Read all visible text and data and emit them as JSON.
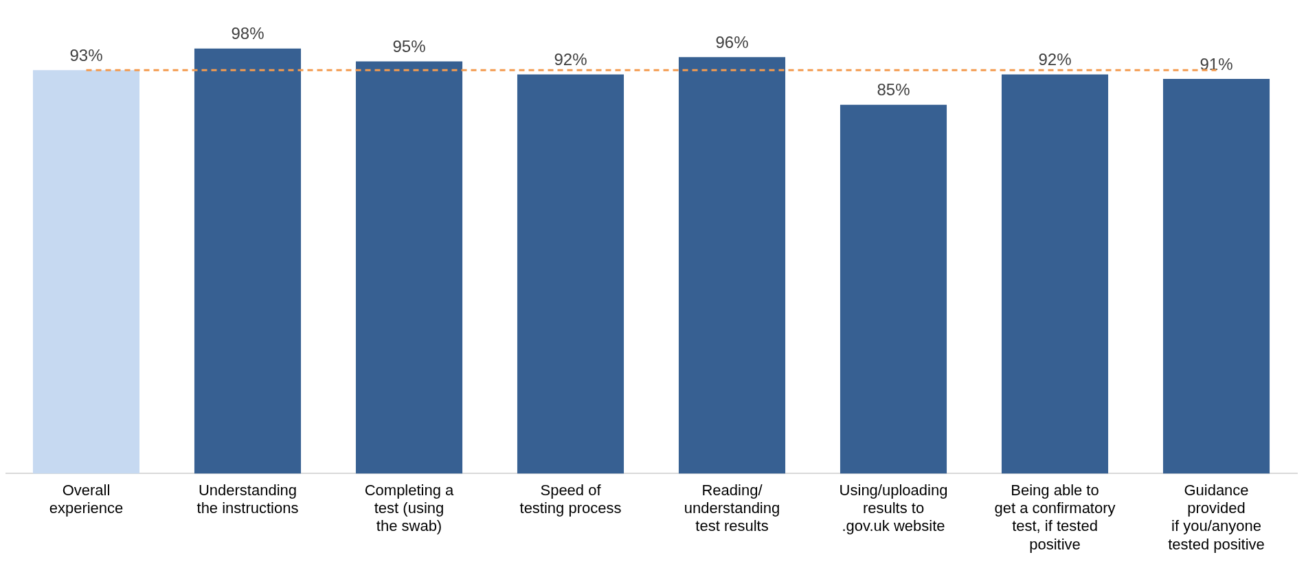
{
  "chart_data": {
    "type": "bar",
    "categories": [
      "Overall\nexperience",
      "Understanding\nthe instructions",
      "Completing a\ntest (using\nthe swab)",
      "Speed of\ntesting process",
      "Reading/\nunderstanding\ntest results",
      "Using/uploading\nresults to\n.gov.uk website",
      "Being able to\nget a confirmatory\ntest, if tested\npositive",
      "Guidance\nprovided\nif you/anyone\ntested positive"
    ],
    "values": [
      93,
      98,
      95,
      92,
      96,
      85,
      92,
      91
    ],
    "value_labels": [
      "93%",
      "98%",
      "95%",
      "92%",
      "96%",
      "85%",
      "92%",
      "91%"
    ],
    "colors": [
      "#c6d9f1",
      "#376092",
      "#376092",
      "#376092",
      "#376092",
      "#376092",
      "#376092",
      "#376092"
    ],
    "ref_lines": [
      {
        "axis": "y",
        "value": 93,
        "color": "#f39b4f",
        "line_style": "dashed"
      }
    ],
    "grid": false,
    "legend": false,
    "tick_labels": "x"
  }
}
